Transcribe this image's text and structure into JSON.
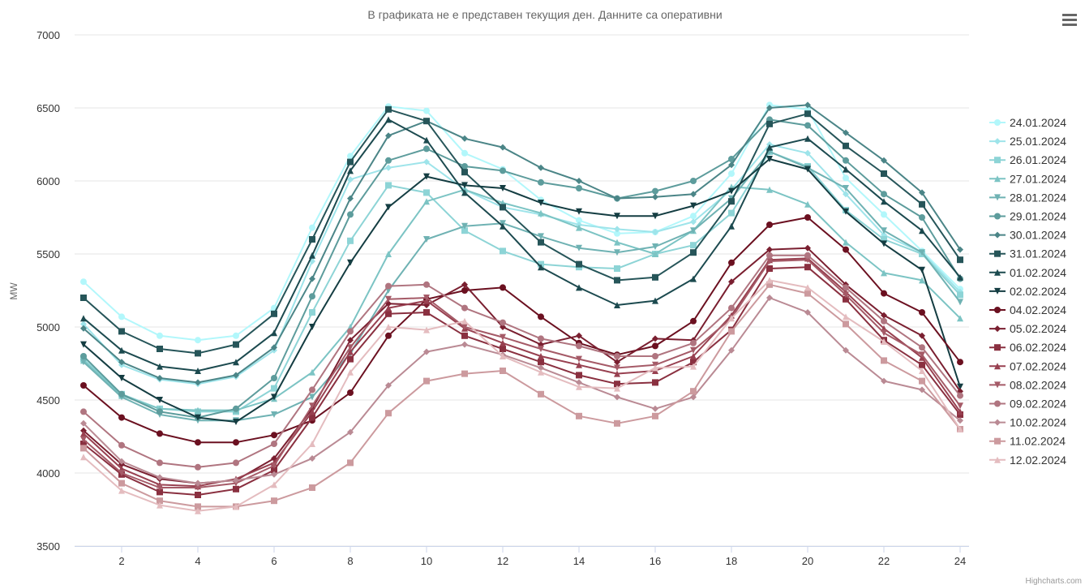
{
  "title": "В графиката не е представен текущия ден. Данните са оперативни",
  "credits": "Highcharts.com",
  "menu_icon": "hamburger-menu-icon",
  "chart_data": {
    "type": "line",
    "title": "В графиката не е представен текущия ден. Данните са оперативни",
    "xlabel": "",
    "ylabel": "MW",
    "xlim": [
      1,
      24
    ],
    "ylim": [
      3500,
      7000
    ],
    "x_ticks": [
      2,
      4,
      6,
      8,
      10,
      12,
      14,
      16,
      18,
      20,
      22,
      24
    ],
    "y_ticks": [
      3500,
      4000,
      4500,
      5000,
      5500,
      6000,
      6500,
      7000
    ],
    "grid": "horizontal",
    "legend_position": "right",
    "x": [
      1,
      2,
      3,
      4,
      5,
      6,
      7,
      8,
      9,
      10,
      11,
      12,
      13,
      14,
      15,
      16,
      17,
      18,
      19,
      20,
      21,
      22,
      23,
      24
    ],
    "series": [
      {
        "name": "24.01.2024",
        "color": "#b2f7fb",
        "marker": "circle",
        "values": [
          5310,
          5070,
          4940,
          4910,
          4940,
          5130,
          5680,
          6170,
          6510,
          6480,
          6190,
          6080,
          5870,
          5730,
          5640,
          5650,
          5760,
          6050,
          6520,
          6490,
          6020,
          5770,
          5520,
          5260
        ]
      },
      {
        "name": "25.01.2024",
        "color": "#9ee4ea",
        "marker": "diamond",
        "values": [
          5020,
          4740,
          4640,
          4610,
          4660,
          4840,
          5450,
          6010,
          6090,
          6130,
          5940,
          5820,
          5770,
          5700,
          5670,
          5650,
          5720,
          5940,
          6250,
          6190,
          5910,
          5630,
          5510,
          5240
        ]
      },
      {
        "name": "26.01.2024",
        "color": "#8dd4d6",
        "marker": "square",
        "values": [
          4780,
          4540,
          4440,
          4420,
          4420,
          4580,
          5100,
          5590,
          5970,
          5920,
          5660,
          5520,
          5430,
          5410,
          5400,
          5500,
          5560,
          5780,
          6200,
          6100,
          5800,
          5600,
          5500,
          5220
        ]
      },
      {
        "name": "27.01.2024",
        "color": "#7cc4c4",
        "marker": "triangle",
        "values": [
          4770,
          4530,
          4440,
          4430,
          4430,
          4510,
          4690,
          5000,
          5500,
          5860,
          5940,
          5850,
          5780,
          5680,
          5580,
          5500,
          5660,
          5960,
          5940,
          5840,
          5580,
          5370,
          5320,
          5060
        ]
      },
      {
        "name": "28.01.2024",
        "color": "#6fb2b3",
        "marker": "triangle-down",
        "values": [
          4760,
          4520,
          4400,
          4360,
          4360,
          4400,
          4520,
          4820,
          5250,
          5600,
          5690,
          5710,
          5620,
          5540,
          5510,
          5550,
          5660,
          5880,
          6200,
          6090,
          5950,
          5660,
          5510,
          5170
        ]
      },
      {
        "name": "29.01.2024",
        "color": "#5d9c9c",
        "marker": "circle",
        "values": [
          4800,
          4540,
          4420,
          4380,
          4440,
          4650,
          5210,
          5770,
          6140,
          6220,
          6100,
          6070,
          5990,
          5950,
          5880,
          5930,
          6000,
          6150,
          6420,
          6380,
          6140,
          5910,
          5750,
          5330
        ]
      },
      {
        "name": "30.01.2024",
        "color": "#4b8587",
        "marker": "diamond",
        "values": [
          4990,
          4760,
          4650,
          4620,
          4670,
          4860,
          5330,
          5880,
          6310,
          6410,
          6290,
          6230,
          6090,
          6000,
          5880,
          5890,
          5910,
          6110,
          6500,
          6520,
          6330,
          6140,
          5920,
          5530
        ]
      },
      {
        "name": "31.01.2024",
        "color": "#265559",
        "marker": "square",
        "values": [
          5200,
          4970,
          4850,
          4820,
          4880,
          5090,
          5600,
          6130,
          6490,
          6410,
          6060,
          5820,
          5580,
          5430,
          5320,
          5340,
          5510,
          5860,
          6390,
          6460,
          6240,
          6050,
          5840,
          5460
        ]
      },
      {
        "name": "01.02.2024",
        "color": "#1c4a4f",
        "marker": "triangle",
        "values": [
          5060,
          4840,
          4730,
          4700,
          4760,
          4960,
          5490,
          6070,
          6420,
          6280,
          5920,
          5690,
          5410,
          5270,
          5150,
          5180,
          5330,
          5690,
          6230,
          6290,
          6080,
          5860,
          5660,
          5340
        ]
      },
      {
        "name": "02.02.2024",
        "color": "#143d42",
        "marker": "triangle-down",
        "values": [
          4880,
          4650,
          4500,
          4380,
          4350,
          4520,
          5000,
          5440,
          5820,
          6030,
          5970,
          5950,
          5850,
          5790,
          5760,
          5760,
          5830,
          5930,
          6150,
          6080,
          5790,
          5570,
          5390,
          4590
        ]
      },
      {
        "name": "04.02.2024",
        "color": "#6b1020",
        "marker": "circle",
        "values": [
          4600,
          4380,
          4270,
          4210,
          4210,
          4260,
          4360,
          4550,
          4940,
          5190,
          5250,
          5270,
          5070,
          4890,
          4810,
          4870,
          5040,
          5440,
          5700,
          5750,
          5530,
          5230,
          5100,
          4760
        ]
      },
      {
        "name": "05.02.2024",
        "color": "#7a1f30",
        "marker": "diamond",
        "values": [
          4290,
          4060,
          3960,
          3930,
          3950,
          4100,
          4440,
          4910,
          5160,
          5150,
          5290,
          5000,
          4880,
          4940,
          4760,
          4920,
          4910,
          5310,
          5530,
          5540,
          5290,
          5080,
          4940,
          4560
        ]
      },
      {
        "name": "06.02.2024",
        "color": "#8a3040",
        "marker": "square",
        "values": [
          4200,
          3990,
          3870,
          3850,
          3890,
          4020,
          4380,
          4780,
          5090,
          5100,
          4940,
          4850,
          4760,
          4670,
          4610,
          4620,
          4760,
          4980,
          5400,
          5410,
          5190,
          4910,
          4740,
          4400
        ]
      },
      {
        "name": "07.02.2024",
        "color": "#984050",
        "marker": "triangle",
        "values": [
          4270,
          4030,
          3920,
          3910,
          3960,
          4070,
          4420,
          4830,
          5130,
          5180,
          4990,
          4890,
          4800,
          4740,
          4680,
          4700,
          4800,
          5080,
          5460,
          5470,
          5240,
          4990,
          4790,
          4420
        ]
      },
      {
        "name": "08.02.2024",
        "color": "#a55a67",
        "marker": "triangle-down",
        "values": [
          4230,
          4000,
          3900,
          3900,
          3930,
          4050,
          4460,
          4860,
          5190,
          5200,
          5000,
          4930,
          4850,
          4780,
          4720,
          4740,
          4840,
          5060,
          5450,
          5460,
          5220,
          4960,
          4810,
          4460
        ]
      },
      {
        "name": "09.02.2024",
        "color": "#b07580",
        "marker": "circle",
        "values": [
          4420,
          4190,
          4070,
          4040,
          4070,
          4200,
          4570,
          4970,
          5280,
          5290,
          5130,
          5030,
          4920,
          4870,
          4800,
          4800,
          4890,
          5130,
          5490,
          5490,
          5270,
          5040,
          4860,
          4530
        ]
      },
      {
        "name": "10.02.2024",
        "color": "#ba8a94",
        "marker": "diamond",
        "values": [
          4340,
          4080,
          3970,
          3930,
          3950,
          3990,
          4100,
          4280,
          4600,
          4830,
          4880,
          4810,
          4720,
          4620,
          4520,
          4440,
          4520,
          4840,
          5200,
          5100,
          4840,
          4630,
          4570,
          4360
        ]
      },
      {
        "name": "11.02.2024",
        "color": "#cc9a9e",
        "marker": "square",
        "values": [
          4170,
          3930,
          3810,
          3770,
          3770,
          3810,
          3900,
          4070,
          4410,
          4630,
          4680,
          4700,
          4540,
          4390,
          4340,
          4390,
          4560,
          4970,
          5290,
          5230,
          5020,
          4770,
          4630,
          4300
        ]
      },
      {
        "name": "12.02.2024",
        "color": "#e4bcbf",
        "marker": "triangle",
        "values": [
          4110,
          3880,
          3780,
          3740,
          3770,
          3920,
          4200,
          4690,
          5000,
          4980,
          5040,
          4800,
          4690,
          4590,
          4580,
          4720,
          4730,
          5060,
          5320,
          5270,
          5070,
          4900,
          4700,
          4300
        ]
      }
    ]
  }
}
